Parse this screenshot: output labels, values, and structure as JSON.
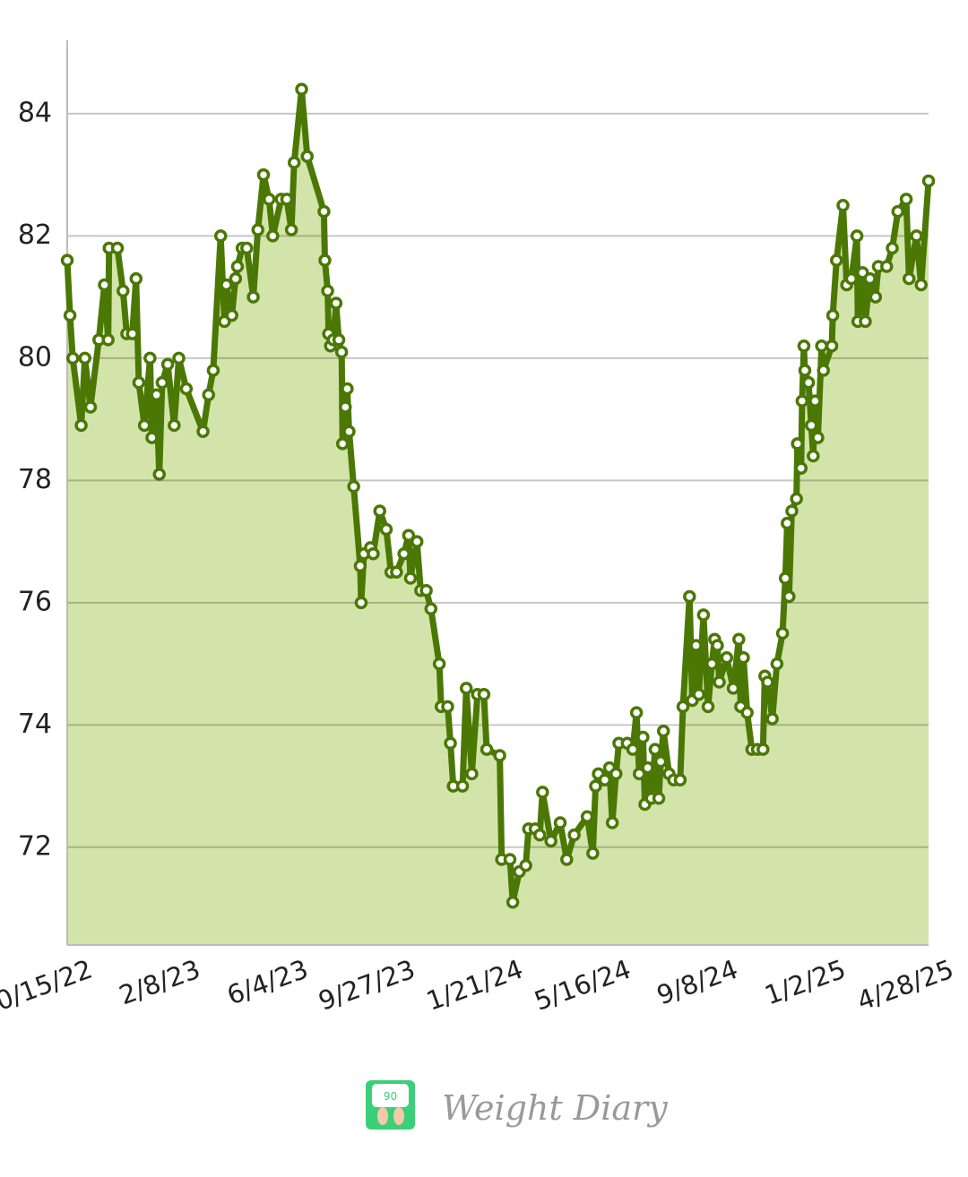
{
  "chart_data": {
    "type": "line",
    "x": [
      "2022-10-15",
      "2022-10-18",
      "2022-10-21",
      "2022-10-30",
      "2022-11-03",
      "2022-11-09",
      "2022-11-18",
      "2022-11-24",
      "2022-11-28",
      "2022-11-29",
      "2022-12-08",
      "2022-12-14",
      "2022-12-18",
      "2022-12-24",
      "2022-12-28",
      "2022-12-31",
      "2023-01-06",
      "2023-01-12",
      "2023-01-14",
      "2023-01-19",
      "2023-01-22",
      "2023-01-25",
      "2023-01-31",
      "2023-02-07",
      "2023-02-12",
      "2023-02-20",
      "2023-03-10",
      "2023-03-16",
      "2023-03-21",
      "2023-03-29",
      "2023-04-02",
      "2023-04-04",
      "2023-04-10",
      "2023-04-14",
      "2023-04-16",
      "2023-04-21",
      "2023-04-26",
      "2023-05-03",
      "2023-05-08",
      "2023-05-14",
      "2023-05-20",
      "2023-05-24",
      "2023-06-02",
      "2023-06-08",
      "2023-06-13",
      "2023-06-16",
      "2023-06-24",
      "2023-06-30",
      "2023-07-18",
      "2023-07-19",
      "2023-07-22",
      "2023-07-23",
      "2023-07-25",
      "2023-07-28",
      "2023-07-31",
      "2023-08-03",
      "2023-08-06",
      "2023-08-07",
      "2023-08-10",
      "2023-08-12",
      "2023-08-14",
      "2023-08-19",
      "2023-08-26",
      "2023-08-27",
      "2023-08-30",
      "2023-09-06",
      "2023-09-09",
      "2023-09-16",
      "2023-09-23",
      "2023-09-28",
      "2023-10-04",
      "2023-10-12",
      "2023-10-17",
      "2023-10-19",
      "2023-10-26",
      "2023-10-30",
      "2023-11-05",
      "2023-11-10",
      "2023-11-19",
      "2023-11-21",
      "2023-11-28",
      "2023-12-01",
      "2023-12-04",
      "2023-12-14",
      "2023-12-18",
      "2023-12-24",
      "2023-12-30",
      "2024-01-06",
      "2024-01-09",
      "2024-01-23",
      "2024-01-25",
      "2024-02-03",
      "2024-02-06",
      "2024-02-13",
      "2024-02-20",
      "2024-02-23",
      "2024-03-01",
      "2024-03-06",
      "2024-03-09",
      "2024-03-18",
      "2024-03-28",
      "2024-04-04",
      "2024-04-12",
      "2024-04-26",
      "2024-05-02",
      "2024-05-05",
      "2024-05-08",
      "2024-05-15",
      "2024-05-20",
      "2024-05-23",
      "2024-05-27",
      "2024-05-30",
      "2024-06-08",
      "2024-06-14",
      "2024-06-18",
      "2024-06-21",
      "2024-06-25",
      "2024-06-27",
      "2024-06-30",
      "2024-07-04",
      "2024-07-08",
      "2024-07-12",
      "2024-07-14",
      "2024-07-17",
      "2024-07-23",
      "2024-07-28",
      "2024-08-04",
      "2024-08-07",
      "2024-08-14",
      "2024-08-17",
      "2024-08-21",
      "2024-08-24",
      "2024-08-29",
      "2024-09-03",
      "2024-09-07",
      "2024-09-10",
      "2024-09-13",
      "2024-09-15",
      "2024-09-23",
      "2024-09-30",
      "2024-10-06",
      "2024-10-08",
      "2024-10-11",
      "2024-10-15",
      "2024-10-20",
      "2024-10-26",
      "2024-11-01",
      "2024-11-03",
      "2024-11-06",
      "2024-11-11",
      "2024-11-16",
      "2024-11-22",
      "2024-11-25",
      "2024-11-27",
      "2024-11-29",
      "2024-12-02",
      "2024-12-07",
      "2024-12-08",
      "2024-12-12",
      "2024-12-13",
      "2024-12-15",
      "2024-12-16",
      "2024-12-20",
      "2024-12-23",
      "2024-12-25",
      "2024-12-27",
      "2024-12-30",
      "2025-01-03",
      "2025-01-05",
      "2025-01-14",
      "2025-01-15",
      "2025-01-19",
      "2025-01-26",
      "2025-01-30",
      "2025-02-04",
      "2025-02-10",
      "2025-02-11",
      "2025-02-16",
      "2025-02-19",
      "2025-02-24",
      "2025-03-02",
      "2025-03-05",
      "2025-03-14",
      "2025-03-20",
      "2025-03-26",
      "2025-04-04",
      "2025-04-07",
      "2025-04-15",
      "2025-04-20",
      "2025-04-28"
    ],
    "values": [
      81.6,
      80.7,
      80.0,
      78.9,
      80.0,
      79.2,
      80.3,
      81.2,
      80.3,
      81.8,
      81.8,
      81.1,
      80.4,
      80.4,
      81.3,
      79.6,
      78.9,
      80.0,
      78.7,
      79.4,
      78.1,
      79.6,
      79.9,
      78.9,
      80.0,
      79.5,
      78.8,
      79.4,
      79.8,
      82.0,
      80.6,
      81.2,
      80.7,
      81.3,
      81.5,
      81.8,
      81.8,
      81.0,
      82.1,
      83.0,
      82.6,
      82.0,
      82.6,
      82.6,
      82.1,
      83.2,
      84.4,
      83.3,
      82.4,
      81.6,
      81.1,
      80.4,
      80.2,
      80.3,
      80.9,
      80.3,
      80.1,
      78.6,
      79.2,
      79.5,
      78.8,
      77.9,
      76.6,
      76.0,
      76.8,
      76.9,
      76.8,
      77.5,
      77.2,
      76.5,
      76.5,
      76.8,
      77.1,
      76.4,
      77.0,
      76.2,
      76.2,
      75.9,
      75.0,
      74.3,
      74.3,
      73.7,
      73.0,
      73.0,
      74.6,
      73.2,
      74.5,
      74.5,
      73.6,
      73.5,
      71.8,
      71.8,
      71.1,
      71.6,
      71.7,
      72.3,
      72.3,
      72.2,
      72.9,
      72.1,
      72.4,
      71.8,
      72.2,
      72.5,
      71.9,
      73.0,
      73.2,
      73.1,
      73.3,
      72.4,
      73.2,
      73.7,
      73.7,
      73.6,
      74.2,
      73.2,
      73.8,
      72.7,
      73.3,
      72.8,
      73.6,
      72.8,
      73.4,
      73.9,
      73.2,
      73.1,
      73.1,
      74.3,
      76.1,
      74.4,
      75.3,
      74.5,
      75.8,
      74.3,
      75.0,
      75.4,
      75.3,
      74.7,
      75.1,
      74.6,
      75.4,
      74.3,
      75.1,
      74.2,
      73.6,
      73.6,
      73.6,
      74.8,
      74.7,
      74.1,
      75.0,
      75.5,
      76.4,
      77.3,
      76.1,
      77.5,
      77.7,
      78.6,
      78.2,
      79.3,
      80.2,
      79.8,
      79.6,
      78.9,
      78.4,
      79.3,
      78.7,
      80.2,
      79.8,
      80.2,
      80.7,
      81.6,
      82.5,
      81.2,
      81.3,
      82.0,
      80.6,
      81.4,
      80.6,
      81.3,
      81.0,
      81.5,
      81.5,
      81.8,
      82.4,
      82.6,
      81.3,
      82.0,
      81.2,
      82.9
    ],
    "color": "#4b7805",
    "fill_color": "#d3e4ab",
    "marker_color": "#ffffff",
    "xlim": [
      "2022-10-15",
      "2025-04-28"
    ],
    "xticks": [
      {
        "value": "2022-10-15",
        "label": "10/15/22"
      },
      {
        "value": "2023-02-08",
        "label": "2/8/23"
      },
      {
        "value": "2023-06-04",
        "label": "6/4/23"
      },
      {
        "value": "2023-09-27",
        "label": "9/27/23"
      },
      {
        "value": "2024-01-21",
        "label": "1/21/24"
      },
      {
        "value": "2024-05-16",
        "label": "5/16/24"
      },
      {
        "value": "2024-09-08",
        "label": "9/8/24"
      },
      {
        "value": "2025-01-02",
        "label": "1/2/25"
      },
      {
        "value": "2025-04-28",
        "label": "4/28/25"
      }
    ],
    "ylim": [
      70.4,
      85.2
    ],
    "yticks": [
      72,
      74,
      76,
      78,
      80,
      82,
      84
    ],
    "grid": true
  },
  "footer": {
    "brand": "Weight Diary"
  }
}
